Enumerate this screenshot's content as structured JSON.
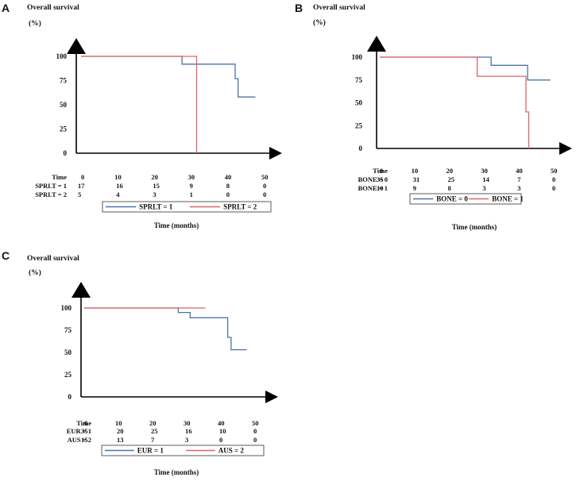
{
  "chart_data": [
    {
      "panel": "A",
      "type": "line",
      "ylabel": "Overall survival",
      "yunit": "(%)",
      "xlabel": "Time (months)",
      "xlim": [
        0,
        50
      ],
      "ylim": [
        0,
        100
      ],
      "yticks": [
        "100",
        "75",
        "50",
        "25",
        "0"
      ],
      "risk_table": {
        "header": "Time",
        "times": [
          "0",
          "10",
          "20",
          "30",
          "40",
          "50"
        ],
        "rows": [
          {
            "label": "SPRLT = 1",
            "values": [
              "17",
              "16",
              "15",
              "9",
              "8",
              "0"
            ]
          },
          {
            "label": "SPRLT = 2",
            "values": [
              "5",
              "4",
              "3",
              "1",
              "0",
              "0"
            ]
          }
        ]
      },
      "legend": [
        "SPRLT = 1",
        "SPRLT = 2"
      ],
      "series": [
        {
          "name": "SPRLT = 1",
          "color": "#4a72a8",
          "x": [
            0,
            27.5,
            27.5,
            42,
            42,
            42.8,
            42.8,
            47.5
          ],
          "y": [
            100,
            100,
            92,
            92,
            77,
            77,
            58,
            58
          ]
        },
        {
          "name": "SPRLT = 2",
          "color": "#e06464",
          "x": [
            0,
            31.5,
            31.5
          ],
          "y": [
            100,
            100,
            0
          ]
        }
      ]
    },
    {
      "panel": "B",
      "type": "line",
      "ylabel": "Overall survival",
      "yunit": "(%)",
      "xlabel": "Time (months)",
      "xlim": [
        0,
        50
      ],
      "ylim": [
        0,
        100
      ],
      "yticks": [
        "100",
        "75",
        "50",
        "25",
        "0"
      ],
      "risk_table": {
        "header": "Time",
        "times": [
          "0",
          "10",
          "20",
          "30",
          "40",
          "50"
        ],
        "rows": [
          {
            "label": "BONE = 0",
            "values": [
              "35",
              "31",
              "25",
              "14",
              "7",
              "0"
            ]
          },
          {
            "label": "BONE = 1",
            "values": [
              "10",
              "9",
              "8",
              "3",
              "3",
              "0"
            ]
          }
        ]
      },
      "legend": [
        "BONE = 0",
        "BONE = 1"
      ],
      "series": [
        {
          "name": "BONE = 0",
          "color": "#4a72a8",
          "x": [
            0,
            32,
            32,
            42.5,
            42.5,
            49
          ],
          "y": [
            100,
            100,
            91,
            91,
            75,
            75
          ]
        },
        {
          "name": "BONE = 1",
          "color": "#e06464",
          "x": [
            0,
            28,
            28,
            42,
            42,
            42.8,
            42.8
          ],
          "y": [
            100,
            100,
            79,
            79,
            40,
            40,
            0
          ]
        }
      ]
    },
    {
      "panel": "C",
      "type": "line",
      "ylabel": "Overall survival",
      "yunit": "(%)",
      "xlabel": "Time (months)",
      "xlim": [
        0,
        50
      ],
      "ylim": [
        0,
        100
      ],
      "yticks": [
        "100",
        "75",
        "50",
        "25",
        "0"
      ],
      "risk_table": {
        "header": "Time",
        "times": [
          "0",
          "10",
          "20",
          "30",
          "40",
          "50"
        ],
        "rows": [
          {
            "label": "EUR = 1",
            "values": [
              "35",
              "20",
              "25",
              "16",
              "10",
              "0"
            ]
          },
          {
            "label": "AUS = 2",
            "values": [
              "15",
              "13",
              "7",
              "3",
              "0",
              "0"
            ]
          }
        ]
      },
      "legend": [
        "EUR = 1",
        "AUS = 2"
      ],
      "series": [
        {
          "name": "EUR = 1",
          "color": "#4a72a8",
          "x": [
            0,
            27.5,
            27.5,
            31,
            31,
            42,
            42,
            43,
            43,
            47.5
          ],
          "y": [
            100,
            100,
            95,
            95,
            89,
            89,
            67,
            67,
            53,
            53
          ]
        },
        {
          "name": "AUS = 2",
          "color": "#e06464",
          "x": [
            0,
            35.5
          ],
          "y": [
            100,
            100
          ]
        }
      ]
    }
  ]
}
